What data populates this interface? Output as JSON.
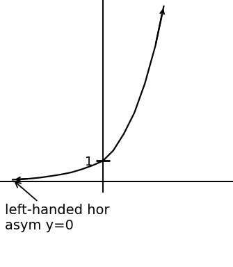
{
  "chart_data": {
    "type": "line",
    "x": [
      -4.3,
      -3.5,
      -3,
      -2.5,
      -2,
      -1.5,
      -1,
      -0.5,
      0,
      0.5,
      1,
      1.5,
      2,
      2.5,
      2.9
    ],
    "values": [
      0.1,
      0.15,
      0.2,
      0.27,
      0.35,
      0.45,
      0.6,
      0.78,
      1,
      1.5,
      2.3,
      3.3,
      4.7,
      6.5,
      8.4
    ],
    "color": "#000000",
    "xlim": [
      -4.9,
      6.2
    ],
    "ylim": [
      -0.5,
      8.7
    ],
    "xticks": [],
    "yticks": [
      1
    ],
    "tick_labels": "y",
    "annotation": "left-handed hor\nasym y=0"
  }
}
